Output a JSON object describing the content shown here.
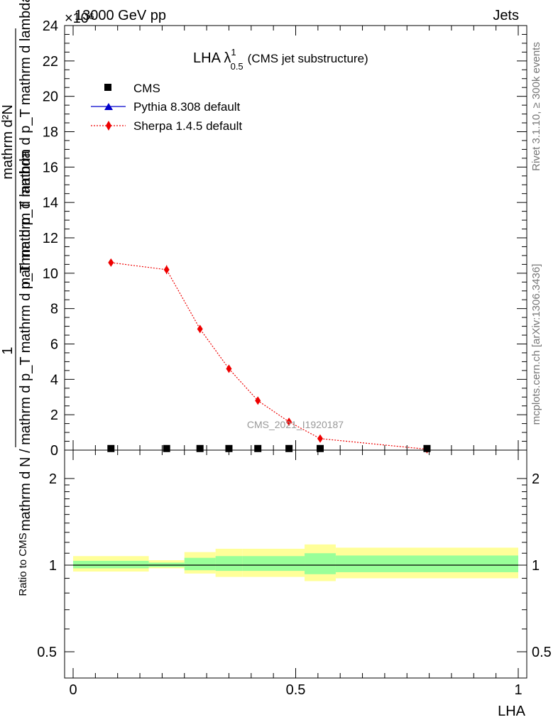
{
  "header": {
    "left": "13000 GeV pp",
    "right": "Jets",
    "exponent": "×10⁶"
  },
  "side_labels": {
    "rivet": "Rivet 3.1.10, ≥ 300k events",
    "mcplots": "mcplots.cern.ch [arXiv:1306.3436]"
  },
  "watermark": "CMS_2021_I1920187",
  "colors": {
    "cms": "#000000",
    "pythia": "#0000cc",
    "sherpa": "#ee0000",
    "band_outer": "#ffff99",
    "band_inner": "#99ff99"
  },
  "chart_data": [
    {
      "type": "scatter",
      "title": "LHA λ",
      "title_sup": "1",
      "title_sub": "0.5",
      "title_suffix": "(CMS jet substructure)",
      "ylabel_top": "1",
      "ylabel_bottom": "mathrm d N / mathrm d p_T mathrm d p_T mathrm d lambda",
      "ylabel_num": "mathrm d²N",
      "ylabel_den": "mathrm d p_T mathrm d p_T mathrm d lambda",
      "xlim": [
        0,
        1
      ],
      "ylim": [
        0,
        24
      ],
      "y_scale_exponent": 6,
      "yticks": [
        0,
        2,
        4,
        6,
        8,
        10,
        12,
        14,
        16,
        18,
        20,
        22,
        24
      ],
      "ytick_labels": [
        "0",
        "2",
        "4",
        "6",
        "8",
        "10",
        "12",
        "14",
        "16",
        "18",
        "20",
        "22",
        "24"
      ],
      "legend": [
        "CMS",
        "Pythia 8.308 default",
        "Sherpa 1.4.5 default"
      ],
      "series": [
        {
          "name": "CMS",
          "marker": "square",
          "x": [
            0.085,
            0.21,
            0.285,
            0.35,
            0.415,
            0.485,
            0.555,
            0.795
          ],
          "y": [
            0.05,
            0.05,
            0.05,
            0.05,
            0.05,
            0.05,
            0.05,
            0.05
          ]
        },
        {
          "name": "Sherpa 1.4.5 default",
          "marker": "diamond",
          "line": "dotted",
          "x": [
            0.085,
            0.21,
            0.285,
            0.35,
            0.415,
            0.485,
            0.555,
            0.795
          ],
          "y": [
            10.6,
            10.2,
            6.85,
            4.6,
            2.8,
            1.6,
            0.65,
            0.05
          ],
          "yerr": [
            0.12,
            0.25,
            0.18,
            0.1,
            0.08,
            0.06,
            0.04,
            0.02
          ]
        }
      ]
    },
    {
      "type": "area",
      "ylabel": "Ratio to CMS",
      "xlabel": "LHA",
      "xlim": [
        0,
        1
      ],
      "ylim": [
        0.4,
        2.4
      ],
      "y_scale": "log",
      "yticks": [
        0.5,
        1,
        2
      ],
      "ytick_labels": [
        "0.5",
        "1",
        "2"
      ],
      "xticks": [
        0,
        0.5,
        1
      ],
      "xtick_labels": [
        "0",
        "0.5",
        "1"
      ],
      "bins": [
        [
          0,
          0.17
        ],
        [
          0.17,
          0.25
        ],
        [
          0.25,
          0.32
        ],
        [
          0.32,
          0.38
        ],
        [
          0.38,
          0.52
        ],
        [
          0.52,
          0.59
        ],
        [
          0.59,
          1.0
        ]
      ],
      "band_outer_lo": [
        0.95,
        0.975,
        0.935,
        0.91,
        0.91,
        0.88,
        0.9
      ],
      "band_outer_hi": [
        1.075,
        1.04,
        1.11,
        1.14,
        1.14,
        1.18,
        1.15
      ],
      "band_inner_lo": [
        0.975,
        0.985,
        0.96,
        0.955,
        0.955,
        0.93,
        0.945
      ],
      "band_inner_hi": [
        1.035,
        1.02,
        1.06,
        1.075,
        1.075,
        1.1,
        1.08
      ],
      "reference": 1
    }
  ]
}
